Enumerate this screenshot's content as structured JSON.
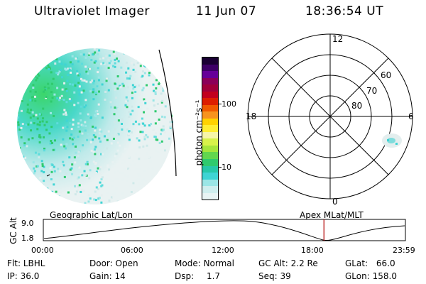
{
  "header": {
    "instrument": "Ultraviolet Imager",
    "date": "11 Jun 07",
    "time": "18:36:54 UT"
  },
  "colorbar": {
    "unit_label": "photon cm⁻²s⁻¹",
    "ticks": [
      "100",
      "10"
    ],
    "colors": [
      "#1a0033",
      "#3d0066",
      "#660099",
      "#8b0059",
      "#a0003a",
      "#c2001f",
      "#dd1e00",
      "#f05a00",
      "#f7931e",
      "#ffd200",
      "#ffee33",
      "#f6f5a8",
      "#d7f24a",
      "#a5e63c",
      "#62d64e",
      "#2fca6e",
      "#27c8a9",
      "#3fd4d4",
      "#9be6e6",
      "#cfeeee",
      "#e8f4f4"
    ]
  },
  "polar_grid": {
    "lat_labels": [
      "60",
      "70",
      "80"
    ],
    "mlt_labels": {
      "top": "12",
      "left": "18",
      "right": "6",
      "bottom": "0"
    }
  },
  "timeline": {
    "left_title": "Geographic Lat/Lon",
    "right_title": "Apex MLat/MLT",
    "axis_label": "GC Alt",
    "y_ticks": [
      "9.0",
      "1.8"
    ],
    "x_ticks": [
      "00:00",
      "06:00",
      "12:00",
      "18:00",
      "23:59"
    ],
    "current_time_fraction": 0.775,
    "marker_color": "#b00000"
  },
  "info": {
    "row1": [
      {
        "label": "Flt:",
        "value": "LBHL"
      },
      {
        "label": "Door:",
        "value": "Open"
      },
      {
        "label": "Mode:",
        "value": "Normal"
      },
      {
        "label": "GC Alt:",
        "value": "2.2 Re"
      },
      {
        "label": "GLat:",
        "value": "66.0"
      }
    ],
    "row2": [
      {
        "label": "IP:",
        "value": "36.0"
      },
      {
        "label": "Gain:",
        "value": "14"
      },
      {
        "label": "Dsp:",
        "value": "1.7"
      },
      {
        "label": "Seq:",
        "value": "39"
      },
      {
        "label": "GLon:",
        "value": "158.0"
      }
    ]
  }
}
